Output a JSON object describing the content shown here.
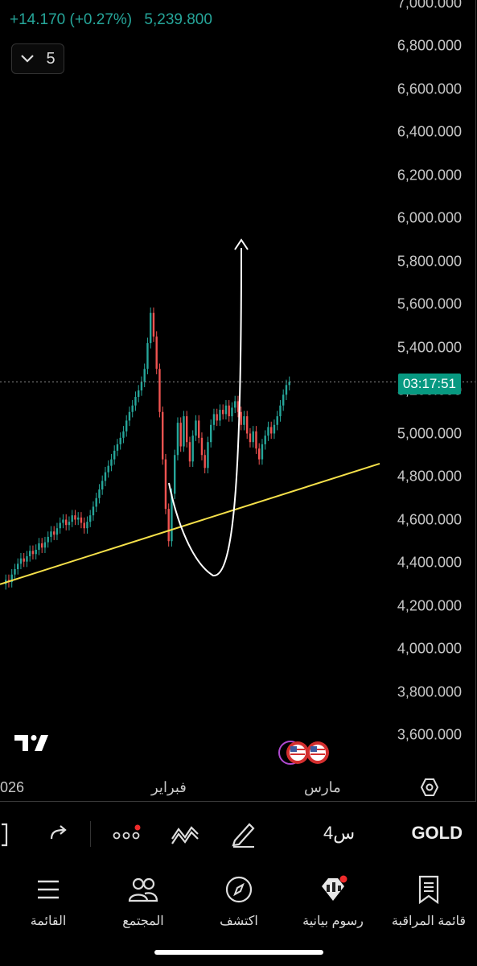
{
  "header": {
    "change": "+14.170 (+0.27%)",
    "price": "5,239.800",
    "collapse_count": "5"
  },
  "price_axis": [
    {
      "label": "7,000.000",
      "value": 7000
    },
    {
      "label": "6,800.000",
      "value": 6800
    },
    {
      "label": "6,600.000",
      "value": 6600
    },
    {
      "label": "6,400.000",
      "value": 6400
    },
    {
      "label": "6,200.000",
      "value": 6200
    },
    {
      "label": "6,000.000",
      "value": 6000
    },
    {
      "label": "5,800.000",
      "value": 5800
    },
    {
      "label": "5,600.000",
      "value": 5600
    },
    {
      "label": "5,400.000",
      "value": 5400
    },
    {
      "label": "5,200.000",
      "value": 5200
    },
    {
      "label": "5,000.000",
      "value": 5000
    },
    {
      "label": "4,800.000",
      "value": 4800
    },
    {
      "label": "4,600.000",
      "value": 4600
    },
    {
      "label": "4,400.000",
      "value": 4400
    },
    {
      "label": "4,200.000",
      "value": 4200
    },
    {
      "label": "4,000.000",
      "value": 4000
    },
    {
      "label": "3,800.000",
      "value": 3800
    },
    {
      "label": "3,600.000",
      "value": 3600
    }
  ],
  "time_badge": "03:17:51",
  "time_axis": {
    "year": "026",
    "feb": "فبراير",
    "mar": "مارس"
  },
  "toolbar": {
    "symbol": "GOLD",
    "interval": "4س"
  },
  "nav": {
    "watchlist": "قائمة المراقبة",
    "charts": "رسوم بيانية",
    "explore": "اكتشف",
    "community": "المجتمع",
    "menu": "القائمة"
  },
  "colors": {
    "up": "#26a69a",
    "down": "#ef5350",
    "trendline": "#f5e04a",
    "badge": "#089981"
  },
  "chart_data": {
    "type": "candlestick",
    "symbol": "GOLD",
    "interval": "4h",
    "last_price": 5239.8,
    "ylim": [
      3500,
      7050
    ],
    "x_ticks": [
      "026",
      "فبراير",
      "مارس"
    ],
    "trendline": {
      "from_price": 4300,
      "to_price": 4860
    },
    "candles": [
      [
        4300,
        4320
      ],
      [
        4320,
        4310
      ],
      [
        4310,
        4345
      ],
      [
        4345,
        4370
      ],
      [
        4370,
        4395
      ],
      [
        4395,
        4420
      ],
      [
        4420,
        4405
      ],
      [
        4405,
        4430
      ],
      [
        4430,
        4455
      ],
      [
        4455,
        4440
      ],
      [
        4440,
        4460
      ],
      [
        4460,
        4490
      ],
      [
        4490,
        4470
      ],
      [
        4470,
        4495
      ],
      [
        4495,
        4520
      ],
      [
        4520,
        4545
      ],
      [
        4545,
        4530
      ],
      [
        4530,
        4560
      ],
      [
        4560,
        4585
      ],
      [
        4585,
        4600
      ],
      [
        4600,
        4575
      ],
      [
        4575,
        4590
      ],
      [
        4590,
        4620
      ],
      [
        4620,
        4600
      ],
      [
        4600,
        4610
      ],
      [
        4610,
        4585
      ],
      [
        4585,
        4560
      ],
      [
        4560,
        4590
      ],
      [
        4590,
        4620
      ],
      [
        4620,
        4660
      ],
      [
        4660,
        4700
      ],
      [
        4700,
        4740
      ],
      [
        4740,
        4780
      ],
      [
        4780,
        4820
      ],
      [
        4820,
        4850
      ],
      [
        4850,
        4880
      ],
      [
        4880,
        4920
      ],
      [
        4920,
        4950
      ],
      [
        4950,
        4980
      ],
      [
        4980,
        5010
      ],
      [
        5010,
        5060
      ],
      [
        5060,
        5100
      ],
      [
        5100,
        5130
      ],
      [
        5130,
        5170
      ],
      [
        5170,
        5200
      ],
      [
        5200,
        5240
      ],
      [
        5240,
        5300
      ],
      [
        5300,
        5420
      ],
      [
        5420,
        5560
      ],
      [
        5560,
        5450
      ],
      [
        5450,
        5300
      ],
      [
        5300,
        5100
      ],
      [
        5100,
        4880
      ],
      [
        4880,
        4650
      ],
      [
        4650,
        4500
      ],
      [
        4500,
        4720
      ],
      [
        4720,
        4900
      ],
      [
        4900,
        5050
      ],
      [
        5050,
        4940
      ],
      [
        4940,
        5080
      ],
      [
        5080,
        4960
      ],
      [
        4960,
        4870
      ],
      [
        4870,
        4990
      ],
      [
        4990,
        5060
      ],
      [
        5060,
        4980
      ],
      [
        4980,
        4900
      ],
      [
        4900,
        4840
      ],
      [
        4840,
        4960
      ],
      [
        4960,
        5040
      ],
      [
        5040,
        5090
      ],
      [
        5090,
        5060
      ],
      [
        5060,
        5110
      ],
      [
        5110,
        5090
      ],
      [
        5090,
        5130
      ],
      [
        5130,
        5080
      ],
      [
        5080,
        5120
      ],
      [
        5120,
        5150
      ],
      [
        5150,
        5100
      ],
      [
        5100,
        5040
      ],
      [
        5040,
        5080
      ],
      [
        5080,
        5000
      ],
      [
        5000,
        4960
      ],
      [
        4960,
        5010
      ],
      [
        5010,
        4930
      ],
      [
        4930,
        4880
      ],
      [
        4880,
        4950
      ],
      [
        4950,
        4990
      ],
      [
        4990,
        5030
      ],
      [
        5030,
        5000
      ],
      [
        5000,
        5040
      ],
      [
        5040,
        5080
      ],
      [
        5080,
        5130
      ],
      [
        5130,
        5180
      ],
      [
        5180,
        5225
      ],
      [
        5225,
        5239.8
      ]
    ]
  }
}
